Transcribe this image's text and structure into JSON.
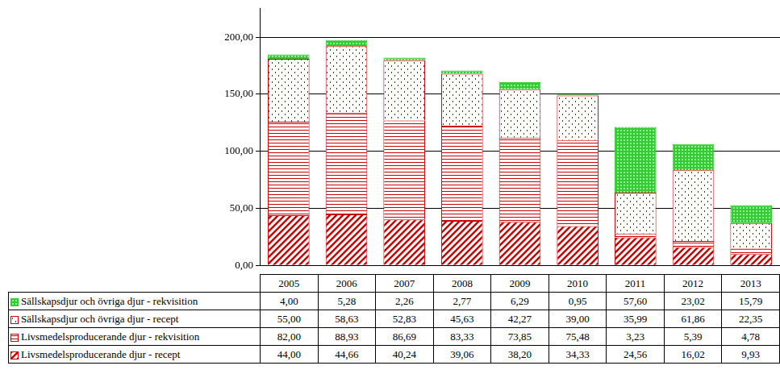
{
  "chart_data": {
    "type": "bar",
    "stacked": true,
    "grid": true,
    "tick_labels": "y",
    "categories": [
      "2005",
      "2006",
      "2007",
      "2008",
      "2009",
      "2010",
      "2011",
      "2012",
      "2013"
    ],
    "ylim": [
      0,
      225
    ],
    "yticks": [
      {
        "value": 0,
        "label": "0,00"
      },
      {
        "value": 50,
        "label": "50,00"
      },
      {
        "value": 100,
        "label": "100,00"
      },
      {
        "value": 150,
        "label": "150,00"
      },
      {
        "value": 200,
        "label": "200,00"
      }
    ],
    "series": [
      {
        "name": "Livsmedelsproducerande djur - recept",
        "color": "#cc0000",
        "values": [
          44.0,
          44.66,
          40.24,
          39.06,
          38.2,
          34.33,
          24.56,
          16.02,
          9.93
        ],
        "value_labels": [
          "44,00",
          "44,66",
          "40,24",
          "39,06",
          "38,20",
          "34,33",
          "24,56",
          "16,02",
          "9,93"
        ]
      },
      {
        "name": "Livsmedelsproducerande djur - rekvisition",
        "color": "#cc0000",
        "values": [
          82.0,
          88.93,
          86.69,
          83.33,
          73.85,
          75.48,
          3.23,
          5.39,
          4.78
        ],
        "value_labels": [
          "82,00",
          "88,93",
          "86,69",
          "83,33",
          "73,85",
          "75,48",
          "3,23",
          "5,39",
          "4,78"
        ]
      },
      {
        "name": "Sällskapsdjur och övriga djur - recept",
        "color": "#cc0000",
        "values": [
          55.0,
          58.63,
          52.83,
          45.63,
          42.27,
          39.0,
          35.99,
          61.86,
          22.35
        ],
        "value_labels": [
          "55,00",
          "58,63",
          "52,83",
          "45,63",
          "42,27",
          "39,00",
          "35,99",
          "61,86",
          "22,35"
        ]
      },
      {
        "name": "Sällskapsdjur och övriga djur - rekvisition",
        "color": "#33cc33",
        "values": [
          4.0,
          5.28,
          2.26,
          2.77,
          6.29,
          0.95,
          57.6,
          23.02,
          15.79
        ],
        "value_labels": [
          "4,00",
          "5,28",
          "2,26",
          "2,77",
          "6,29",
          "0,95",
          "57,60",
          "23,02",
          "15,79"
        ]
      }
    ]
  }
}
